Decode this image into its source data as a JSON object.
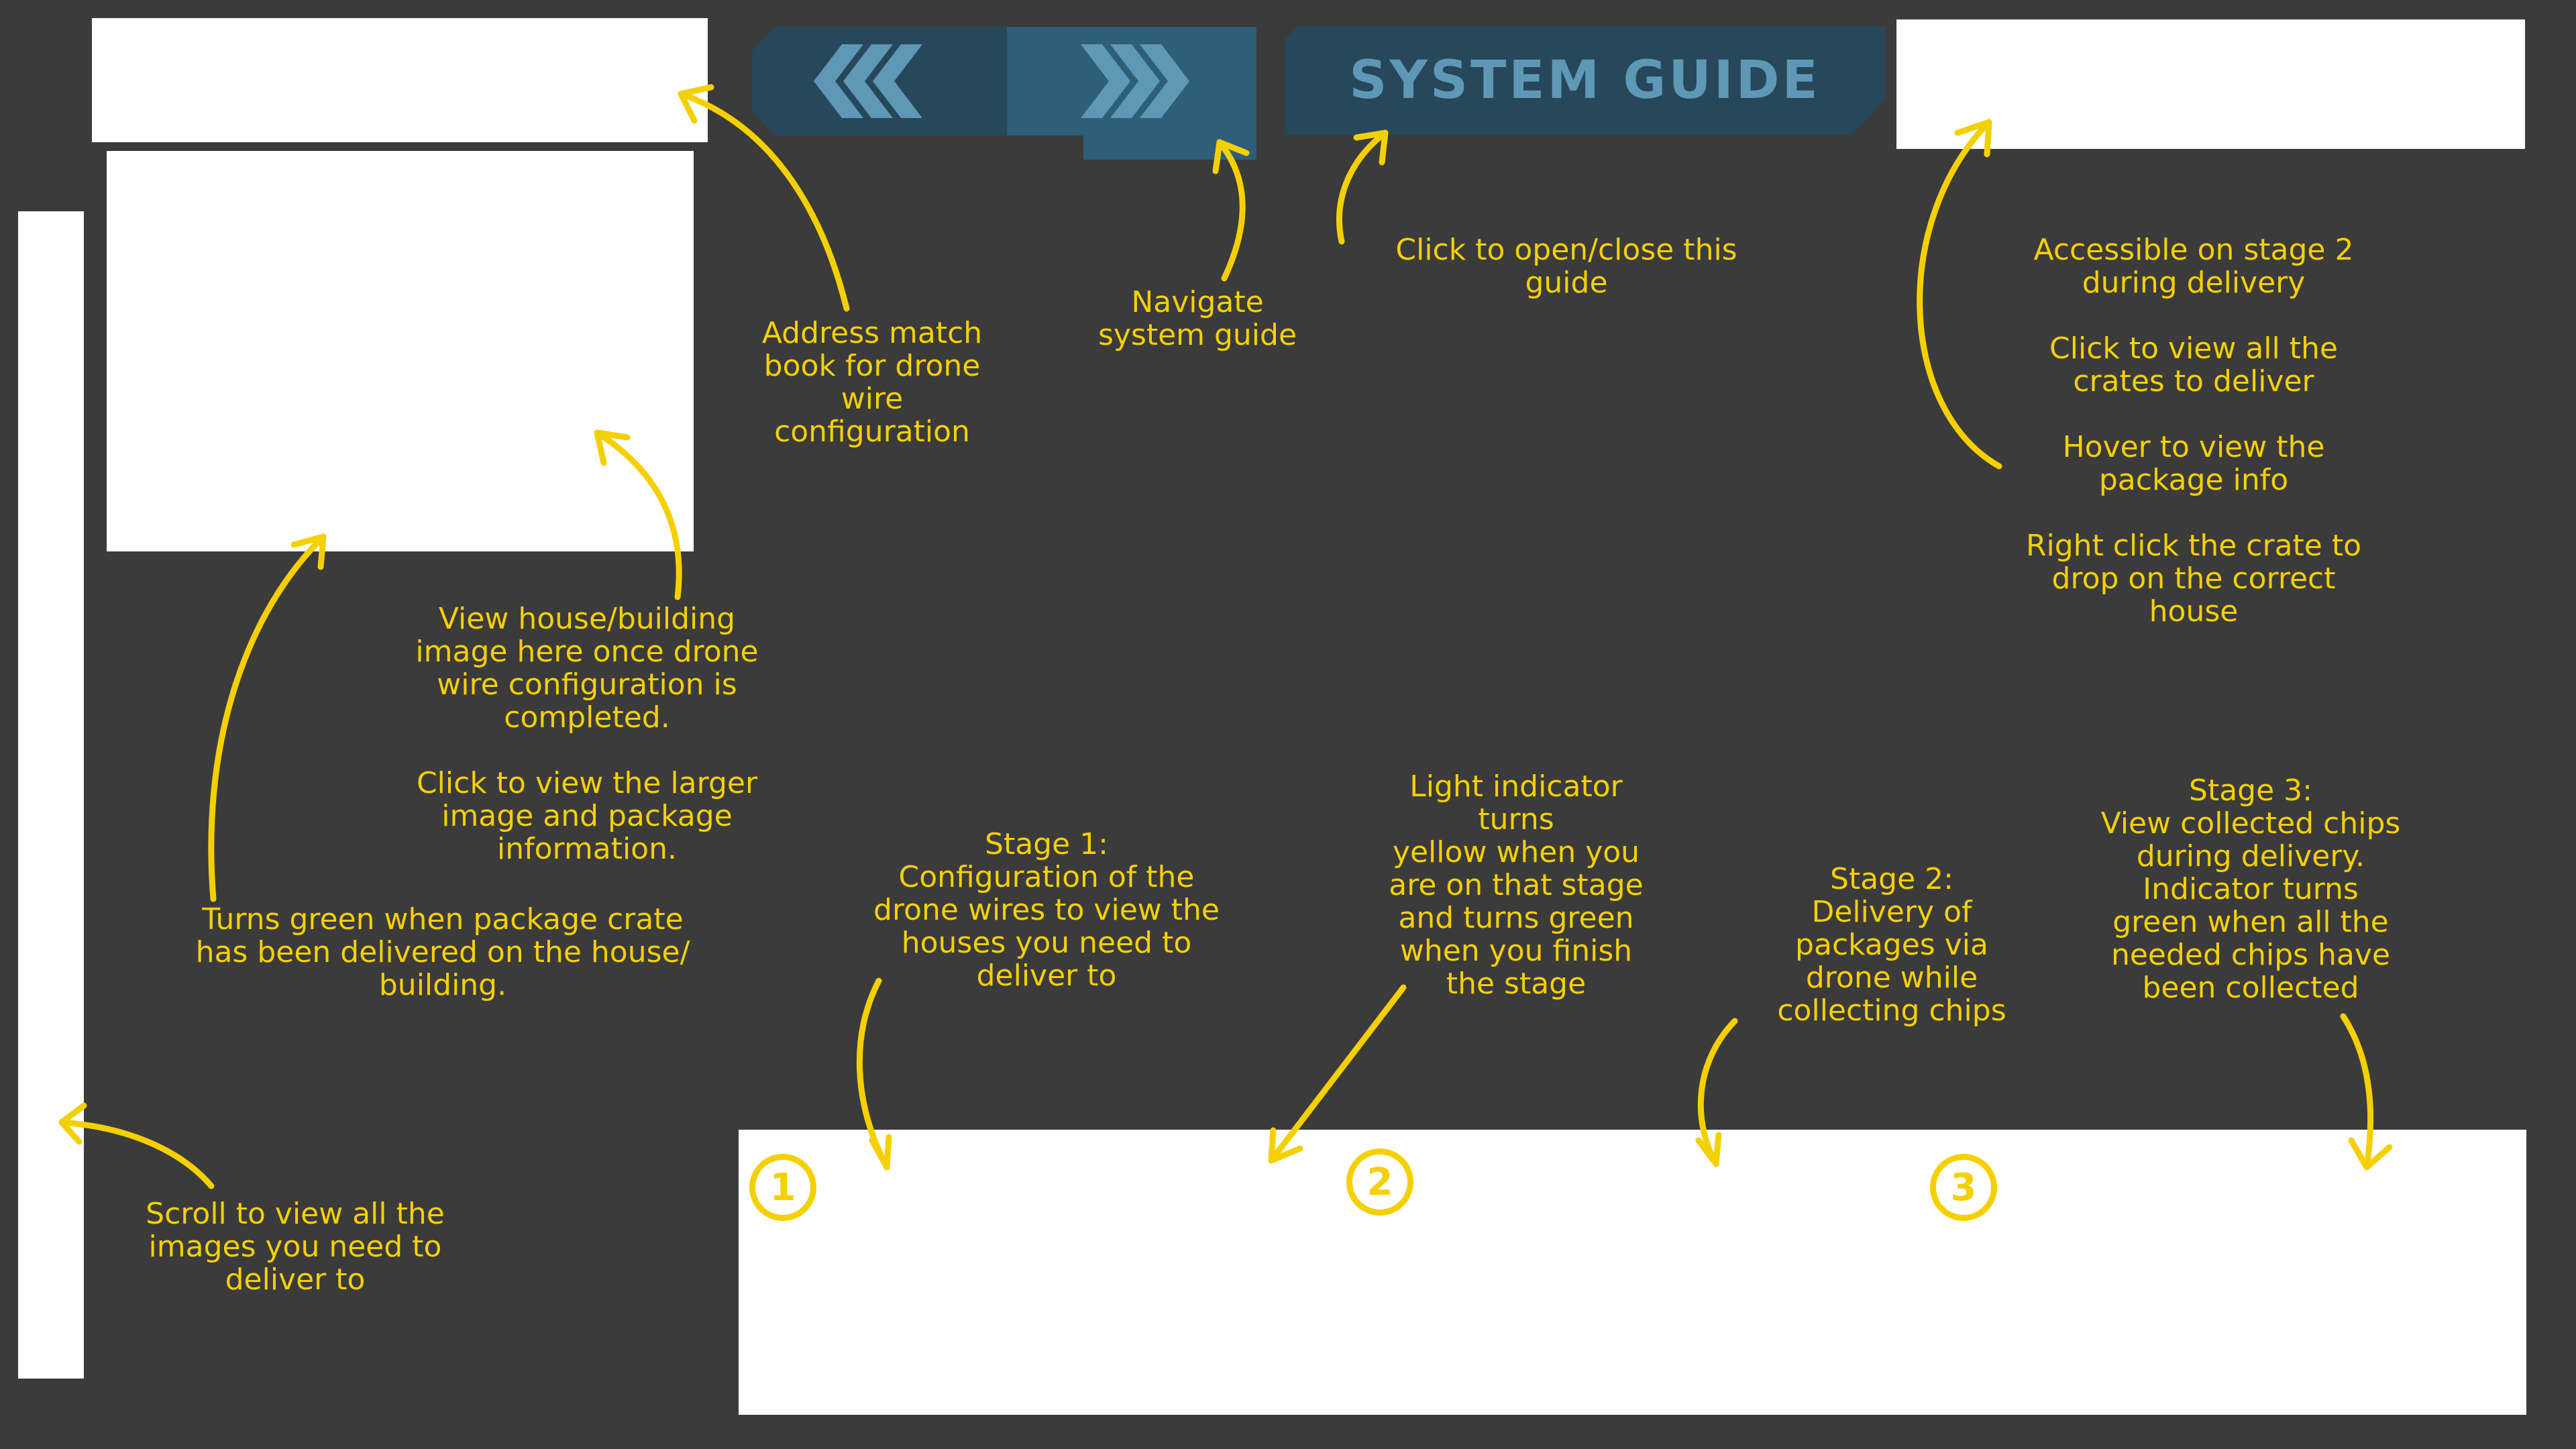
{
  "header": {
    "guide_title": "SYSTEM GUIDE",
    "nav_prev_icon": "triple-chevron-left-icon",
    "nav_next_icon": "triple-chevron-right-icon"
  },
  "colors": {
    "background": "#3b3b3c",
    "panel": "#ffffff",
    "nav_dark": "#27475a",
    "nav_light": "#2f5e78",
    "nav_accent": "#5e98b6",
    "annotation": "#f5d000"
  },
  "annotations": {
    "address_book": "Address match\nbook for drone\nwire\nconfiguration",
    "navigate": "Navigate\nsystem guide",
    "open_close": "Click to open/close this\nguide",
    "crates": "Accessible on stage 2\nduring delivery\n\nClick to view all the\ncrates to deliver\n\nHover to view the\npackage info\n\nRight click the crate to\ndrop on the correct\nhouse",
    "house_image": "View house/building\nimage here once drone\nwire configuration is\ncompleted.\n\nClick to view the larger\nimage and package\ninformation.",
    "delivered": "Turns green when package crate\nhas been delivered on the house/\nbuilding.",
    "stage1": "Stage 1:\nConfiguration of the\ndrone wires to view the\nhouses you need to\ndeliver to",
    "light_indicator": "Light indicator\nturns\nyellow when you\nare on that stage\nand turns green\nwhen you finish\nthe stage",
    "stage2": "Stage 2:\nDelivery of\npackages via\ndrone while\ncollecting chips",
    "stage3": "Stage 3:\nView collected chips\nduring delivery.\nIndicator turns\ngreen when all the\nneeded chips have\nbeen collected",
    "scroll": "Scroll to view all the\nimages you need to\ndeliver to"
  },
  "stages": {
    "one": "1",
    "two": "2",
    "three": "3"
  }
}
